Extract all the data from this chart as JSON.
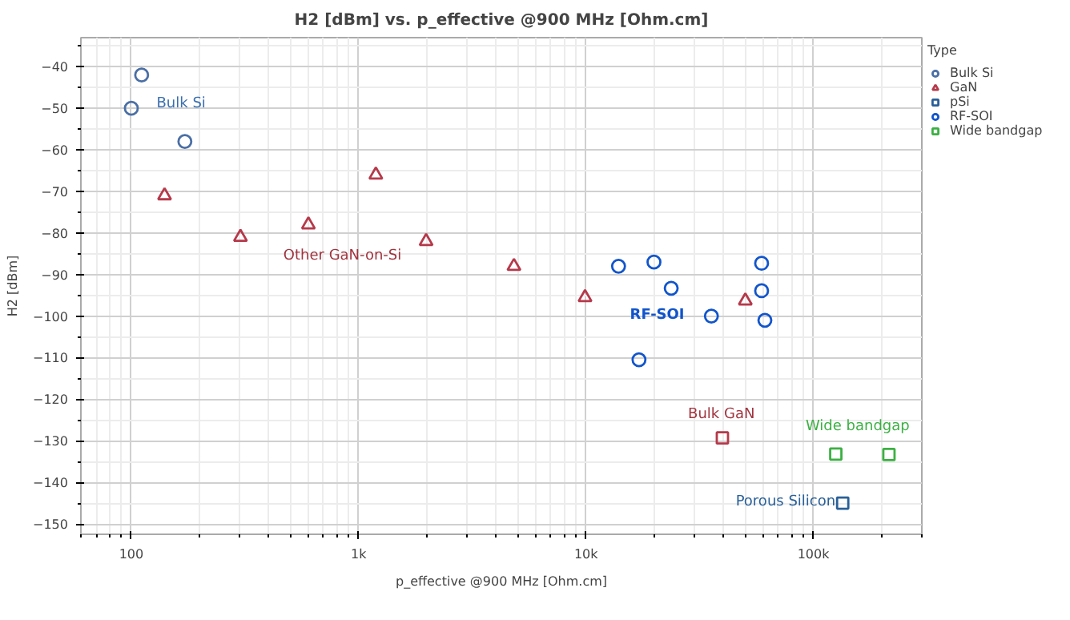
{
  "chart_data": {
    "type": "scatter",
    "title": "H2 [dBm] vs. p_effective @900 MHz [Ohm.cm]",
    "xlabel": "p_effective @900 MHz [Ohm.cm]",
    "ylabel": "H2 [dBm]",
    "legend_title": "Type",
    "log": "x",
    "grid": true,
    "legend": "top right",
    "xlim": [
      60,
      300000
    ],
    "xticks": [
      {
        "value": 100,
        "label": "100"
      },
      {
        "value": 1000,
        "label": "1k"
      },
      {
        "value": 10000,
        "label": "10k"
      },
      {
        "value": 100000,
        "label": "100k"
      }
    ],
    "ylim": [
      -152.5,
      -33
    ],
    "yticks": [
      -40,
      -50,
      -60,
      -70,
      -80,
      -90,
      -100,
      -110,
      -120,
      -130,
      -140,
      -150
    ],
    "series": [
      {
        "name": "Bulk Si",
        "color": "#4a6fa5",
        "marker": "circle",
        "x": [
          100,
          111,
          172
        ],
        "values": [
          -50,
          -42,
          -58
        ]
      },
      {
        "name": "GaN",
        "color": "#b5394a",
        "marker": "triangle",
        "x": [
          140,
          302,
          601,
          1190,
          1980,
          4820,
          9900
        ],
        "values": [
          -71,
          -81,
          -78,
          -66,
          -82,
          -88,
          -95.5
        ]
      },
      {
        "color": "#b5394a",
        "marker": "triangle",
        "x": [
          50200
        ],
        "values": [
          -96.3
        ]
      },
      {
        "color": "#b5394a",
        "marker": "square",
        "x": [
          39800
        ],
        "values": [
          -129.3
        ]
      },
      {
        "name": "pSi",
        "color": "#2a6099",
        "marker": "square",
        "x": [
          134600
        ],
        "values": [
          -145
        ]
      },
      {
        "name": "RF-SOI",
        "color": "#1155cc",
        "marker": "circle",
        "x": [
          13900,
          19900,
          23700,
          35600,
          59200,
          59200,
          61200,
          17100
        ],
        "values": [
          -88,
          -87,
          -93.3,
          -100,
          -87.3,
          -93.9,
          -101,
          -110.5
        ]
      },
      {
        "name": "Wide bandgap",
        "color": "#3cb043",
        "marker": "square",
        "x": [
          125500,
          215000
        ],
        "values": [
          -133.2,
          -133.3
        ]
      }
    ],
    "annotations": [
      "Bulk Si",
      "Other GaN-on-Si",
      "RF-SOI",
      "Bulk GaN",
      "Wide bandgap",
      "Porous Silicon"
    ]
  }
}
